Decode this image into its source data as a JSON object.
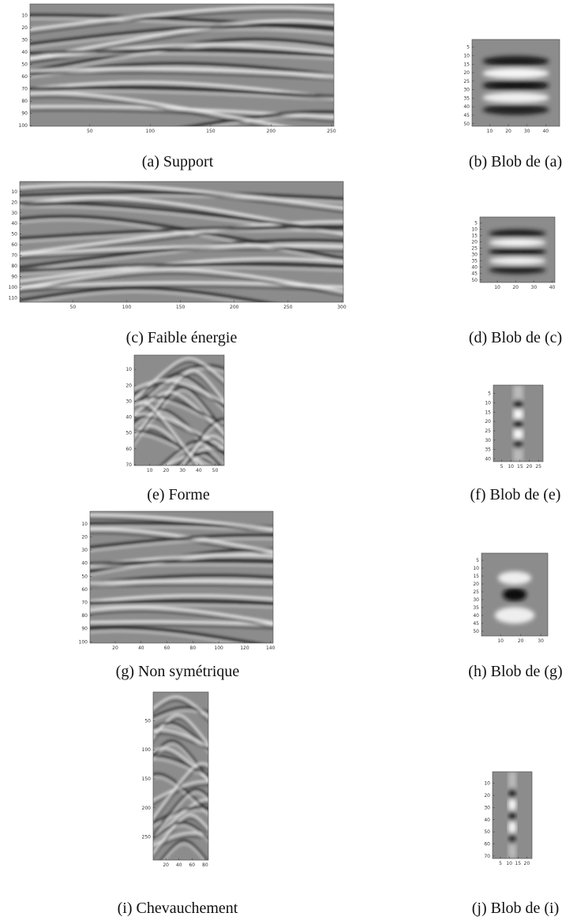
{
  "panels": [
    {
      "caption": "(a) Support",
      "xlim": [
        0.5,
        252
      ],
      "ylim": [
        0.5,
        100.5
      ],
      "xticks": [
        50,
        100,
        150,
        200,
        250
      ],
      "yticks": [
        10,
        20,
        30,
        40,
        50,
        60,
        70,
        80,
        90,
        100
      ]
    },
    {
      "caption": "(b) Blob de (a)",
      "xlim": [
        0.5,
        47.5
      ],
      "ylim": [
        0.5,
        51.5
      ],
      "xticks": [
        10,
        20,
        30,
        40
      ],
      "yticks": [
        5,
        10,
        15,
        20,
        25,
        30,
        35,
        40,
        45,
        50
      ]
    },
    {
      "caption": "(c) Faible énergie",
      "xlim": [
        0.5,
        301.5
      ],
      "ylim": [
        0.5,
        114
      ],
      "xticks": [
        50,
        100,
        150,
        200,
        250,
        300
      ],
      "yticks": [
        10,
        20,
        30,
        40,
        50,
        60,
        70,
        80,
        90,
        100,
        110
      ]
    },
    {
      "caption": "(d) Blob de (c)",
      "xlim": [
        0.5,
        41.5
      ],
      "ylim": [
        0.5,
        52
      ],
      "xticks": [
        10,
        20,
        30,
        40
      ],
      "yticks": [
        5,
        10,
        15,
        20,
        25,
        30,
        35,
        40,
        45,
        50
      ]
    },
    {
      "caption": "(e) Forme",
      "xlim": [
        0.5,
        55.5
      ],
      "ylim": [
        1,
        70.5
      ],
      "xticks": [
        10,
        20,
        30,
        40,
        50
      ],
      "yticks": [
        10,
        20,
        30,
        40,
        50,
        60,
        70
      ]
    },
    {
      "caption": "(f) Blob de (e)",
      "xlim": [
        0.5,
        27.5
      ],
      "ylim": [
        0.5,
        41.5
      ],
      "xticks": [
        5,
        10,
        15,
        20,
        25
      ],
      "yticks": [
        5,
        10,
        15,
        20,
        25,
        30,
        35,
        40
      ]
    },
    {
      "caption": "(g) Non symétrique",
      "xlim": [
        0.5,
        142
      ],
      "ylim": [
        0.5,
        101
      ],
      "xticks": [
        20,
        40,
        60,
        80,
        100,
        120,
        140
      ],
      "yticks": [
        10,
        20,
        30,
        40,
        50,
        60,
        70,
        80,
        90,
        100
      ]
    },
    {
      "caption": "(h) Blob de (g)",
      "xlim": [
        0.5,
        33.5
      ],
      "ylim": [
        0.5,
        53
      ],
      "xticks": [
        10,
        20,
        30
      ],
      "yticks": [
        5,
        10,
        15,
        20,
        25,
        30,
        35,
        40,
        45,
        50
      ]
    },
    {
      "caption": "(i) Chevauchement",
      "xlim": [
        0.5,
        85
      ],
      "ylim": [
        0.5,
        290
      ],
      "xticks": [
        20,
        40,
        60,
        80
      ],
      "yticks": [
        50,
        100,
        150,
        200,
        250
      ]
    },
    {
      "caption": "(j) Blob de (i)",
      "xlim": [
        0.5,
        23
      ],
      "ylim": [
        0.5,
        72
      ],
      "xticks": [
        5,
        10,
        15,
        20
      ],
      "yticks": [
        10,
        20,
        30,
        40,
        50,
        60,
        70
      ]
    }
  ]
}
